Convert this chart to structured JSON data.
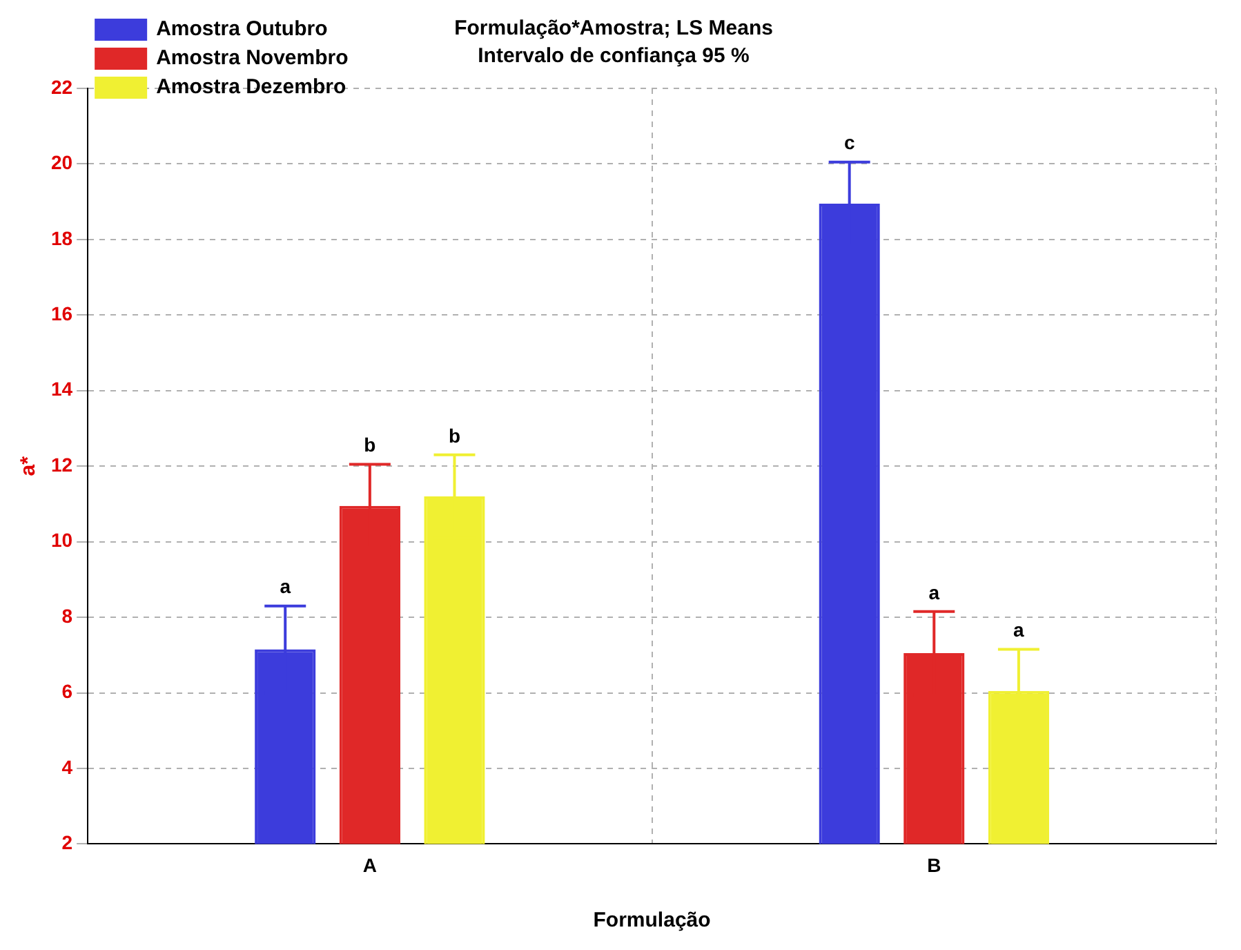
{
  "chart_data": {
    "type": "bar",
    "title": "Formulação*Amostra; LS Means",
    "subtitle": "Intervalo de confiança 95 %",
    "xlabel": "Formulação",
    "ylabel": "a*",
    "categories": [
      "A",
      "B"
    ],
    "series": [
      {
        "name": "Amostra Outubro",
        "color": "#3c3cdc",
        "values": [
          7.15,
          18.95
        ],
        "errors": [
          1.15,
          1.1
        ],
        "value_labels": [
          "a",
          "c"
        ]
      },
      {
        "name": "Amostra Novembro",
        "color": "#e02828",
        "values": [
          10.95,
          7.05
        ],
        "errors": [
          1.1,
          1.1
        ],
        "value_labels": [
          "b",
          "a"
        ]
      },
      {
        "name": "Amostra Dezembro",
        "color": "#f0f032",
        "values": [
          11.2,
          6.05
        ],
        "errors": [
          1.1,
          1.1
        ],
        "value_labels": [
          "b",
          "a"
        ]
      }
    ],
    "ylim": [
      2,
      22
    ],
    "yticks": [
      2,
      4,
      6,
      8,
      10,
      12,
      14,
      16,
      18,
      20,
      22
    ],
    "grid": true,
    "legend": "top left"
  }
}
